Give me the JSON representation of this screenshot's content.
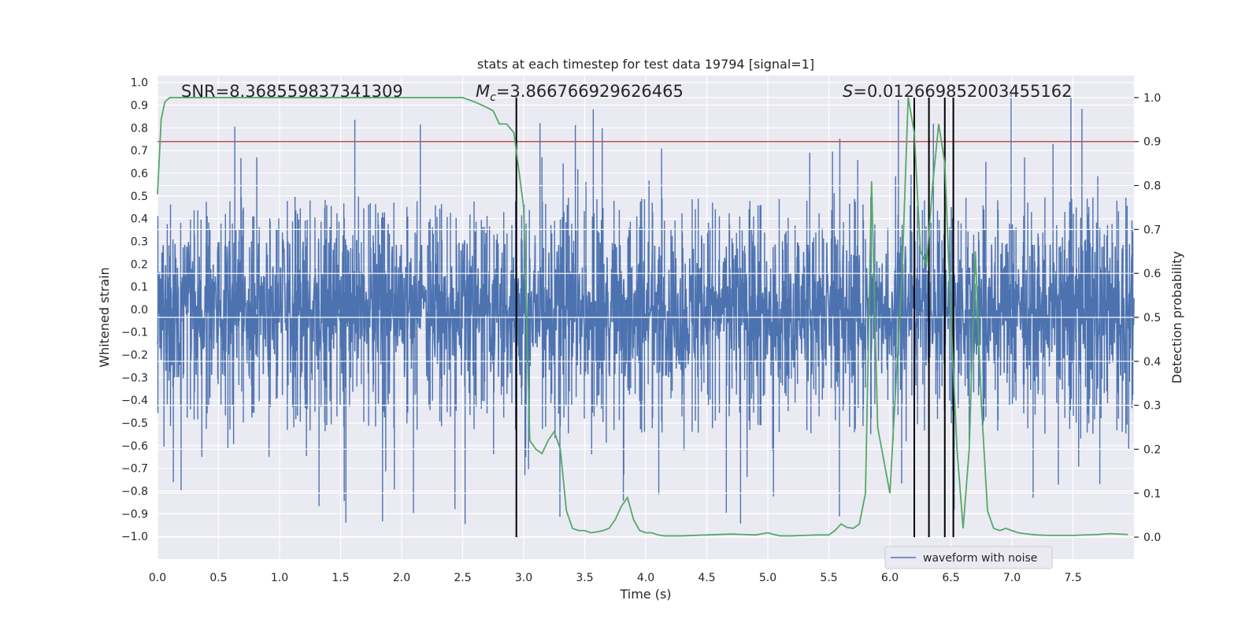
{
  "chart_data": {
    "type": "line",
    "title": "stats at each timestep for test data 19794 [signal=1]",
    "xlabel": "Time (s)",
    "ylabel_left": "Whitened strain",
    "ylabel_right": "Detection probability",
    "xlim": [
      0.0,
      8.0
    ],
    "ylim_left": [
      -1.1,
      1.03
    ],
    "ylim_right": [
      -0.05,
      1.05
    ],
    "x_ticks": [
      "0.0",
      "0.5",
      "1.0",
      "1.5",
      "2.0",
      "2.5",
      "3.0",
      "3.5",
      "4.0",
      "4.5",
      "5.0",
      "5.5",
      "6.0",
      "6.5",
      "7.0",
      "7.5"
    ],
    "y_left_ticks": [
      "1.0",
      "0.9",
      "0.8",
      "0.7",
      "0.6",
      "0.5",
      "0.4",
      "0.3",
      "0.2",
      "0.1",
      "0.0",
      "-0.1",
      "-0.2",
      "-0.3",
      "-0.4",
      "-0.5",
      "-0.6",
      "-0.7",
      "-0.8",
      "-0.9",
      "-1.0"
    ],
    "y_right_ticks": [
      "1.0",
      "0.9",
      "0.8",
      "0.7",
      "0.6",
      "0.5",
      "0.4",
      "0.3",
      "0.2",
      "0.1",
      "0.0"
    ],
    "grid": true,
    "annotations": {
      "snr": "SNR=8.368559837341309",
      "mc_symbol": "M",
      "mc_sub": "c",
      "mc_value": "=3.866766929626465",
      "s_symbol": "S",
      "s_value": "=0.012669852003455162"
    },
    "threshold": {
      "axis": "right",
      "value": 0.9
    },
    "vertical_markers": [
      2.94,
      6.2,
      6.32,
      6.45,
      6.52
    ],
    "series": [
      {
        "name": "waveform with noise",
        "axis": "left",
        "style": "noise",
        "description": "dense whitened strain noise, mostly within ±0.3 with spikes up to ±0.95",
        "envelope": {
          "core": 0.3,
          "spike_max": 0.95
        }
      },
      {
        "name": "detection probability",
        "axis": "right",
        "x": [
          0.0,
          0.03,
          0.06,
          0.1,
          0.2,
          0.5,
          1.0,
          1.5,
          2.0,
          2.3,
          2.5,
          2.6,
          2.68,
          2.75,
          2.8,
          2.86,
          2.92,
          3.0,
          3.05,
          3.1,
          3.15,
          3.2,
          3.25,
          3.3,
          3.35,
          3.4,
          3.45,
          3.5,
          3.55,
          3.6,
          3.65,
          3.7,
          3.75,
          3.8,
          3.85,
          3.9,
          3.95,
          4.0,
          4.05,
          4.1,
          4.15,
          4.2,
          4.3,
          4.5,
          4.7,
          4.8,
          4.9,
          5.0,
          5.05,
          5.1,
          5.2,
          5.3,
          5.4,
          5.5,
          5.55,
          5.6,
          5.65,
          5.7,
          5.75,
          5.8,
          5.85,
          5.9,
          6.0,
          6.1,
          6.15,
          6.2,
          6.25,
          6.3,
          6.35,
          6.4,
          6.45,
          6.5,
          6.55,
          6.6,
          6.65,
          6.7,
          6.75,
          6.8,
          6.85,
          6.9,
          6.95,
          7.0,
          7.05,
          7.1,
          7.2,
          7.3,
          7.5,
          7.7,
          7.8,
          7.95
        ],
        "values": [
          0.78,
          0.95,
          0.99,
          1.0,
          1.0,
          1.0,
          1.0,
          1.0,
          1.0,
          1.0,
          1.0,
          0.99,
          0.98,
          0.97,
          0.94,
          0.94,
          0.92,
          0.75,
          0.22,
          0.2,
          0.19,
          0.22,
          0.24,
          0.2,
          0.06,
          0.02,
          0.015,
          0.015,
          0.01,
          0.012,
          0.015,
          0.02,
          0.04,
          0.07,
          0.09,
          0.04,
          0.015,
          0.01,
          0.01,
          0.005,
          0.003,
          0.003,
          0.003,
          0.005,
          0.007,
          0.006,
          0.005,
          0.01,
          0.006,
          0.003,
          0.003,
          0.004,
          0.005,
          0.005,
          0.015,
          0.03,
          0.022,
          0.02,
          0.03,
          0.1,
          0.81,
          0.25,
          0.1,
          0.6,
          1.0,
          0.92,
          0.65,
          0.62,
          0.8,
          0.94,
          0.85,
          0.5,
          0.2,
          0.02,
          0.2,
          0.65,
          0.3,
          0.06,
          0.02,
          0.015,
          0.02,
          0.015,
          0.01,
          0.008,
          0.005,
          0.004,
          0.004,
          0.006,
          0.008,
          0.006
        ]
      }
    ],
    "legend": {
      "location": "bottom-right",
      "entries": [
        "waveform with noise"
      ]
    },
    "colors": {
      "noise": "#4c72b0",
      "probability": "#55a868",
      "threshold": "#c44e52",
      "markers": "#000000",
      "panel": "#eaeaf2",
      "grid": "#ffffff"
    }
  }
}
